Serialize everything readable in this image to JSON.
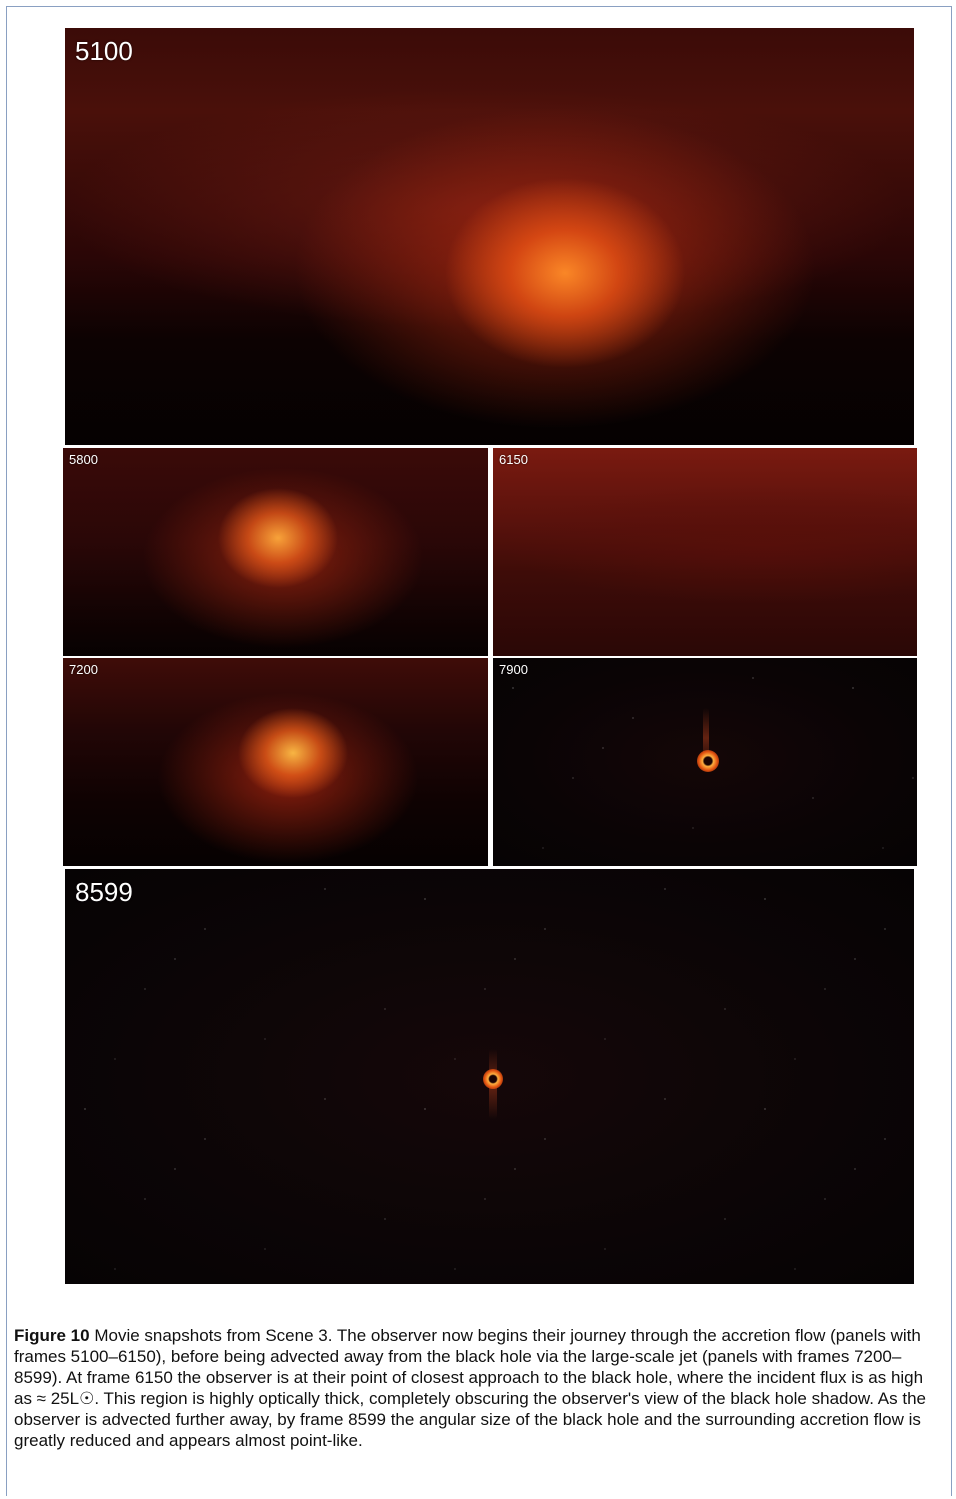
{
  "figure": {
    "panels": [
      {
        "label": "5100"
      },
      {
        "label": "5800"
      },
      {
        "label": "6150"
      },
      {
        "label": "7200"
      },
      {
        "label": "7900"
      },
      {
        "label": "8599"
      }
    ],
    "caption": {
      "figure_label": "Figure 10",
      "text": "Movie snapshots from Scene 3. The observer now begins their journey through the accretion flow (panels with frames 5100–6150), before being advected away from the black hole via the large-scale jet (panels with frames 7200–8599). At frame 6150 the observer is at their point of closest approach to the black hole, where the incident flux is as high as ≈ 25L☉. This region is highly optically thick, completely obscuring the observer's view of the black hole shadow. As the observer is advected further away, by frame 8599 the angular size of the black hole and the surrounding accretion flow is greatly reduced and appears almost point-like."
    }
  },
  "colors": {
    "caption_text": "#111111",
    "panel_label": "#ffffff",
    "frame_border": "#8aa0c2"
  }
}
